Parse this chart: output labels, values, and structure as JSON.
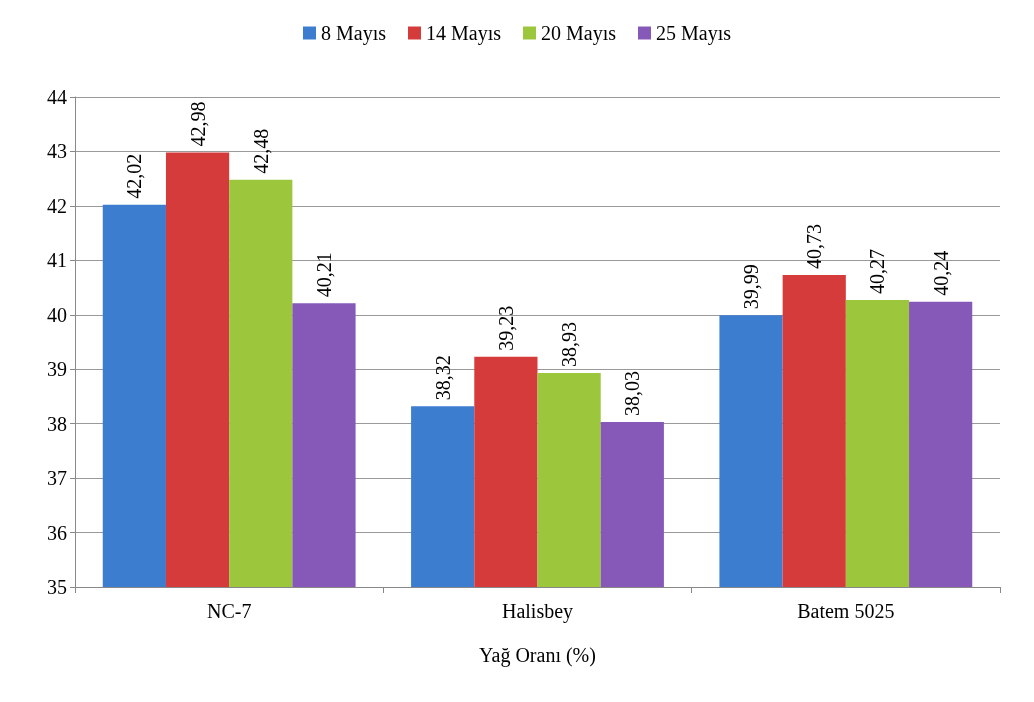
{
  "chart_data": {
    "type": "bar",
    "xlabel": "Yağ Oranı (%)",
    "categories": [
      "NC-7",
      "Halisbey",
      "Batem 5025"
    ],
    "series": [
      {
        "name": "8 Mayıs",
        "color": "#3c7dd0",
        "values": [
          42.02,
          38.32,
          39.99
        ],
        "value_labels": [
          "42,02",
          "38,32",
          "39,99"
        ]
      },
      {
        "name": "14 Mayıs",
        "color": "#d63b3b",
        "values": [
          42.98,
          39.23,
          40.73
        ],
        "value_labels": [
          "42,98",
          "39,23",
          "40,73"
        ]
      },
      {
        "name": "20 Mayıs",
        "color": "#9cc63c",
        "values": [
          42.48,
          38.93,
          40.27
        ],
        "value_labels": [
          "42,48",
          "38,93",
          "40,27"
        ]
      },
      {
        "name": "25 Mayıs",
        "color": "#8658b8",
        "values": [
          40.21,
          38.03,
          40.24
        ],
        "value_labels": [
          "40,21",
          "38,03",
          "40,24"
        ]
      }
    ],
    "ylim": [
      35,
      44
    ],
    "yticks": [
      35,
      36,
      37,
      38,
      39,
      40,
      41,
      42,
      43,
      44
    ],
    "grid": "y",
    "legend": "top"
  }
}
